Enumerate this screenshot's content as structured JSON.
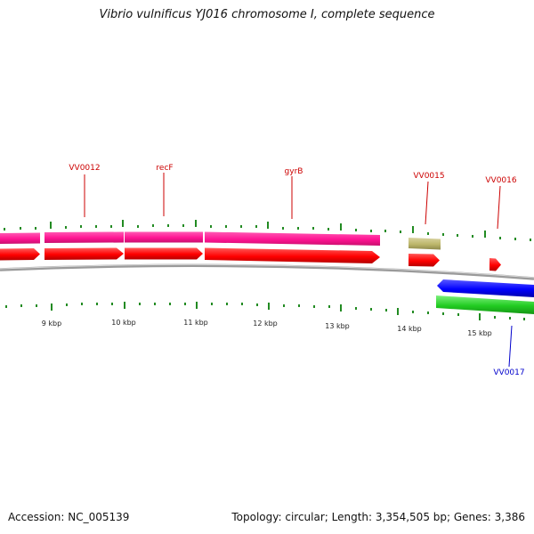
{
  "title": "Vibrio vulnificus YJ016 chromosome I, complete sequence",
  "footer": {
    "accession_label": "Accession:",
    "accession_value": "NC_005139",
    "metadata": "Topology: circular; Length: 3,354,505 bp; Genes: 3,386"
  },
  "ticks": [
    "9 kbp",
    "10 kbp",
    "11 kbp",
    "12 kbp",
    "13 kbp",
    "14 kbp",
    "15 kbp"
  ],
  "gene_labels": [
    {
      "name": "VV0012",
      "strand": "forward"
    },
    {
      "name": "recF",
      "strand": "forward"
    },
    {
      "name": "gyrB",
      "strand": "forward"
    },
    {
      "name": "VV0015",
      "strand": "forward"
    },
    {
      "name": "VV0016",
      "strand": "forward"
    },
    {
      "name": "VV0017",
      "strand": "reverse"
    }
  ],
  "colors": {
    "forward_cds": "#ff0000",
    "reverse_cds": "#0000ff",
    "forward_gene": "#ff1493",
    "reverse_gene": "#22cc22",
    "other_feature": "#bdb76b",
    "backbone": "#888888",
    "tick_marks": "#228b22",
    "label_forward": "#cc0000",
    "label_reverse": "#0000cc"
  }
}
